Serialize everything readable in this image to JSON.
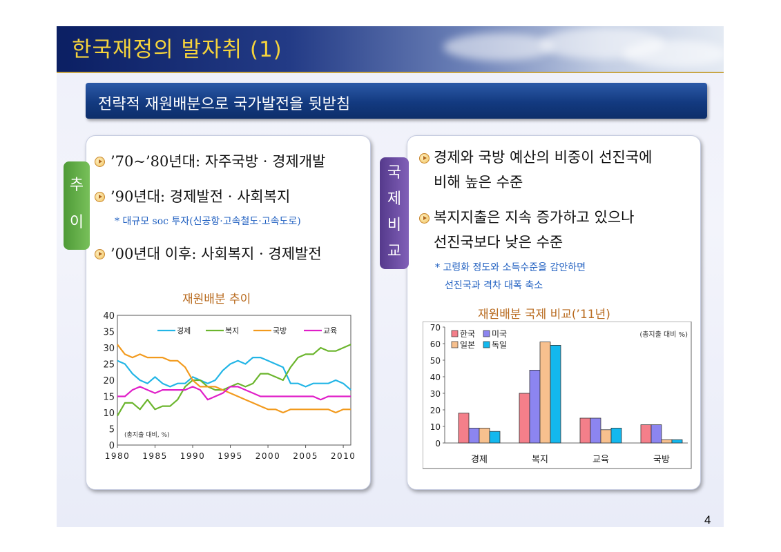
{
  "title": "한국재정의 발자취 (1)",
  "subtitle": "전략적 재원배분으로 국가발전을 뒷받침",
  "left_tab": "추이",
  "right_tab": "국제비교",
  "left_bullets": [
    "’70~’80년대: 자주국방 · 경제개발",
    "’90년대: 경제발전 · 사회복지",
    "’00년대 이후: 사회복지 · 경제발전"
  ],
  "left_note": "* 대규모 soc 투자(신공항·고속철도·고속도로)",
  "right_bullets": [
    [
      "경제와 국방 예산의 비중이 선진국에",
      "비해 높은 수준"
    ],
    [
      "복지지출은 지속 증가하고 있으나",
      "선진국보다 낮은 수준"
    ]
  ],
  "right_note": [
    "* 고령화 정도와 소득수준을 감안하면",
    "선진국과 격차 대폭 축소"
  ],
  "page_number": "4",
  "colors": {
    "gyeongje": "#22b5e6",
    "bokji": "#6bb52d",
    "gukbang": "#f29a1d",
    "gyoyuk": "#e01ec8",
    "korea": "#f47f8a",
    "usa": "#8c85f0",
    "japan": "#f7c08e",
    "germany": "#13b8ee"
  },
  "chart_data": [
    {
      "type": "line",
      "title": "재원배분 추이",
      "note": "(총지출 대비, %)",
      "x": [
        1980,
        1981,
        1982,
        1983,
        1984,
        1985,
        1986,
        1987,
        1988,
        1989,
        1990,
        1991,
        1992,
        1993,
        1994,
        1995,
        1996,
        1997,
        1998,
        1999,
        2000,
        2001,
        2002,
        2003,
        2004,
        2005,
        2006,
        2007,
        2008,
        2009,
        2010,
        2011
      ],
      "xticks": [
        1980,
        1985,
        1990,
        1995,
        2000,
        2005,
        2010
      ],
      "ylim": [
        0,
        40
      ],
      "yticks": [
        0,
        5,
        10,
        15,
        20,
        25,
        30,
        35,
        40
      ],
      "legend_position": "top",
      "series": [
        {
          "name": "경제",
          "values": [
            26,
            25,
            22,
            20,
            19,
            21,
            19,
            18,
            19,
            19,
            21,
            20,
            19,
            20,
            23,
            25,
            26,
            25,
            27,
            27,
            26,
            25,
            24,
            19,
            19,
            18,
            19,
            19,
            19,
            20,
            19,
            17
          ]
        },
        {
          "name": "복지",
          "values": [
            9,
            13,
            13,
            11,
            14,
            11,
            12,
            12,
            14,
            18,
            20,
            20,
            18,
            17,
            17,
            18,
            19,
            18,
            19,
            22,
            22,
            21,
            20,
            24,
            27,
            28,
            28,
            30,
            29,
            29,
            30,
            31
          ]
        },
        {
          "name": "국방",
          "values": [
            31,
            28,
            27,
            28,
            27,
            27,
            27,
            26,
            26,
            24,
            20,
            18,
            18,
            18,
            17,
            16,
            15,
            14,
            13,
            12,
            11,
            11,
            10,
            11,
            11,
            11,
            11,
            11,
            11,
            10,
            11,
            11
          ]
        },
        {
          "name": "교육",
          "values": [
            15,
            15,
            17,
            18,
            17,
            16,
            17,
            17,
            17,
            17,
            18,
            17,
            14,
            15,
            16,
            18,
            18,
            17,
            16,
            15,
            15,
            15,
            15,
            15,
            15,
            15,
            15,
            14,
            15,
            15,
            15,
            15
          ]
        }
      ]
    },
    {
      "type": "bar",
      "title": "재원배분 국제 비교(’11년)",
      "note": "(총지출 대비 %)",
      "categories": [
        "경제",
        "복지",
        "교육",
        "국방"
      ],
      "ylim": [
        0,
        70
      ],
      "yticks": [
        0,
        10,
        20,
        30,
        40,
        50,
        60,
        70
      ],
      "legend_position": "top-left",
      "series": [
        {
          "name": "한국",
          "values": [
            18,
            30,
            15,
            11
          ]
        },
        {
          "name": "미국",
          "values": [
            9,
            44,
            15,
            11
          ]
        },
        {
          "name": "일본",
          "values": [
            9,
            61,
            8,
            2
          ]
        },
        {
          "name": "독일",
          "values": [
            7,
            59,
            9,
            2
          ]
        }
      ]
    }
  ]
}
